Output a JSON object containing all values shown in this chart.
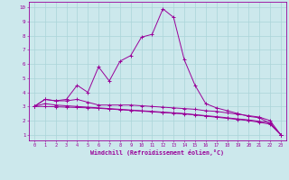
{
  "xlabel": "Windchill (Refroidissement éolien,°C)",
  "bg_color": "#cce8ec",
  "line_color": "#990099",
  "grid_color": "#aad4d8",
  "x_ticks": [
    0,
    1,
    2,
    3,
    4,
    5,
    6,
    7,
    8,
    9,
    10,
    11,
    12,
    13,
    14,
    15,
    16,
    17,
    18,
    19,
    20,
    21,
    22,
    23
  ],
  "y_ticks": [
    1,
    2,
    3,
    4,
    5,
    6,
    7,
    8,
    9,
    10
  ],
  "ylim": [
    0.6,
    10.4
  ],
  "xlim": [
    -0.5,
    23.5
  ],
  "series": [
    [
      3.0,
      3.5,
      3.4,
      3.5,
      4.5,
      4.0,
      5.8,
      4.8,
      6.2,
      6.6,
      7.9,
      8.1,
      9.9,
      9.3,
      6.3,
      4.5,
      3.2,
      2.9,
      2.7,
      2.5,
      2.3,
      2.2,
      1.8,
      1.0
    ],
    [
      3.0,
      3.5,
      3.4,
      3.4,
      3.5,
      3.3,
      3.1,
      3.1,
      3.1,
      3.1,
      3.05,
      3.0,
      2.95,
      2.9,
      2.85,
      2.8,
      2.7,
      2.65,
      2.55,
      2.45,
      2.35,
      2.25,
      2.0,
      1.0
    ],
    [
      3.0,
      3.2,
      3.1,
      3.05,
      3.0,
      2.95,
      2.9,
      2.85,
      2.8,
      2.75,
      2.7,
      2.65,
      2.6,
      2.55,
      2.5,
      2.42,
      2.35,
      2.28,
      2.2,
      2.12,
      2.05,
      1.95,
      1.85,
      1.0
    ],
    [
      3.0,
      3.0,
      2.98,
      2.95,
      2.93,
      2.9,
      2.87,
      2.82,
      2.77,
      2.72,
      2.67,
      2.62,
      2.57,
      2.52,
      2.47,
      2.4,
      2.32,
      2.24,
      2.16,
      2.08,
      2.0,
      1.88,
      1.75,
      1.0
    ]
  ]
}
